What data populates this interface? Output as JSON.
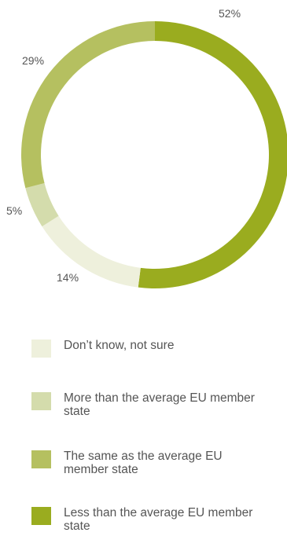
{
  "chart_data": {
    "type": "pie",
    "categories": [
      "Less than the average EU member state",
      "Don’t know, not sure",
      "More than the average EU member state",
      "The same as the average EU member state"
    ],
    "values": [
      52,
      14,
      5,
      29
    ],
    "value_labels": [
      "52%",
      "14%",
      "5%",
      "29%"
    ],
    "colors": [
      "#9aac1f",
      "#eef0dc",
      "#d4dcac",
      "#b5c060"
    ],
    "donut": true,
    "legend_position": "bottom"
  },
  "legend": [
    {
      "label": "Don’t know, not sure",
      "color": "#eef0dc"
    },
    {
      "label": "More than the average EU member state",
      "color": "#d4dcac"
    },
    {
      "label": "The same as the average EU member state",
      "color": "#b5c060"
    },
    {
      "label": "Less than the average EU member state",
      "color": "#9aac1f"
    }
  ]
}
